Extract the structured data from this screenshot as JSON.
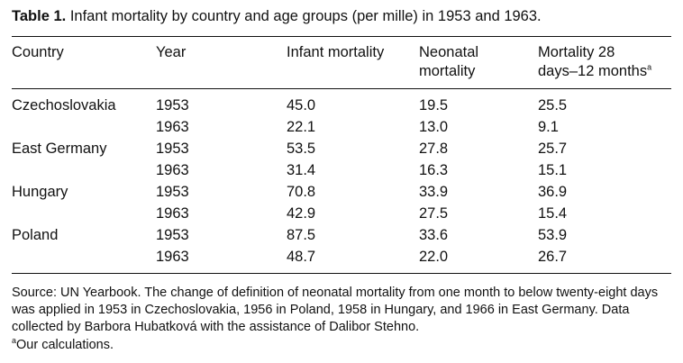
{
  "caption": {
    "label": "Table 1.",
    "text": "Infant mortality by country and age groups (per mille) in 1953 and 1963."
  },
  "columns": {
    "country": "Country",
    "year": "Year",
    "infant": "Infant mortality",
    "neonatal_line1": "Neonatal",
    "neonatal_line2": "mortality",
    "mort_line1": "Mortality 28",
    "mort_line2": "days–12 months",
    "mort_note_mark": "a"
  },
  "rows": [
    {
      "country": "Czechoslovakia",
      "year": "1953",
      "infant": "45.0",
      "neonatal": "19.5",
      "mort": "25.5"
    },
    {
      "country": "",
      "year": "1963",
      "infant": "22.1",
      "neonatal": "13.0",
      "mort": "9.1"
    },
    {
      "country": "East Germany",
      "year": "1953",
      "infant": "53.5",
      "neonatal": "27.8",
      "mort": "25.7"
    },
    {
      "country": "",
      "year": "1963",
      "infant": "31.4",
      "neonatal": "16.3",
      "mort": "15.1"
    },
    {
      "country": "Hungary",
      "year": "1953",
      "infant": "70.8",
      "neonatal": "33.9",
      "mort": "36.9"
    },
    {
      "country": "",
      "year": "1963",
      "infant": "42.9",
      "neonatal": "27.5",
      "mort": "15.4"
    },
    {
      "country": "Poland",
      "year": "1953",
      "infant": "87.5",
      "neonatal": "33.6",
      "mort": "53.9"
    },
    {
      "country": "",
      "year": "1963",
      "infant": "48.7",
      "neonatal": "22.0",
      "mort": "26.7"
    }
  ],
  "notes": {
    "source": "Source: UN Yearbook. The change of definition of neonatal mortality from one month to below twenty-eight days was applied in 1953 in Czechoslovakia, 1956 in Poland, 1958 in Hungary, and 1966 in East Germany. Data collected by Barbora Hubatková with the assistance of Dalibor Stehno.",
    "footnote_mark": "a",
    "footnote_text": "Our calculations."
  }
}
